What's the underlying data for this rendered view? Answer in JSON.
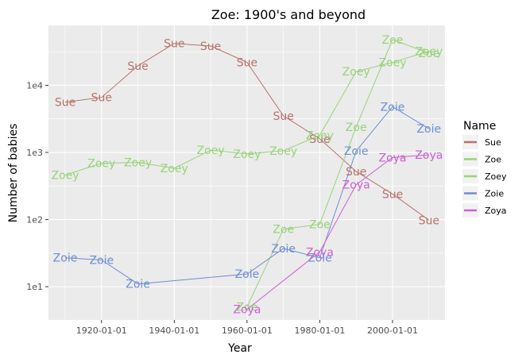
{
  "chart_data": {
    "type": "line",
    "title": "Zoe: 1900's and beyond",
    "xlabel": "Year",
    "ylabel": "Number of babies",
    "x_scale": "date",
    "y_scale": "log10",
    "xlim": [
      "1905-06-01",
      "2014-06-01"
    ],
    "ylim": [
      3.2,
      78000
    ],
    "x_ticks": [
      "1920-01-01",
      "1940-01-01",
      "1960-01-01",
      "1980-01-01",
      "2000-01-01"
    ],
    "y_ticks": [
      {
        "value": 10,
        "label": "1e1"
      },
      {
        "value": 100,
        "label": "1e2"
      },
      {
        "value": 1000,
        "label": "1e3"
      },
      {
        "value": 10000,
        "label": "1e4"
      }
    ],
    "grid": true,
    "legend": {
      "title": "Name",
      "position": "right"
    },
    "series": [
      {
        "name": "Sue",
        "color": "#b5736a",
        "x": [
          "1910-01-01",
          "1920-01-01",
          "1930-01-01",
          "1940-01-01",
          "1950-01-01",
          "1960-01-01",
          "1970-01-01",
          "1980-01-01",
          "1990-01-01",
          "2000-01-01",
          "2010-01-01"
        ],
        "y": [
          5600,
          6600,
          19500,
          42000,
          38500,
          22000,
          3500,
          1600,
          520,
          240,
          98
        ]
      },
      {
        "name": "Zoe",
        "color": "#97d378",
        "x": [
          "1960-01-01",
          "1970-01-01",
          "1980-01-01",
          "1990-01-01",
          "2000-01-01",
          "2010-01-01"
        ],
        "y": [
          5,
          72,
          85,
          2400,
          48000,
          30000
        ]
      },
      {
        "name": "Zoey",
        "color": "#97d378",
        "x": [
          "1910-01-01",
          "1920-01-01",
          "1930-01-01",
          "1940-01-01",
          "1950-01-01",
          "1960-01-01",
          "1970-01-01",
          "1980-01-01",
          "1990-01-01",
          "2000-01-01",
          "2010-01-01"
        ],
        "y": [
          460,
          690,
          710,
          580,
          1080,
          950,
          1060,
          1800,
          16000,
          22000,
          32000
        ]
      },
      {
        "name": "Zoie",
        "color": "#6d8ed1",
        "x": [
          "1910-01-01",
          "1920-01-01",
          "1930-01-01",
          "1960-01-01",
          "1970-01-01",
          "1980-01-01",
          "1990-01-01",
          "2000-01-01",
          "2010-01-01"
        ],
        "y": [
          27,
          25,
          11,
          15.5,
          37,
          27,
          1050,
          4800,
          2250
        ]
      },
      {
        "name": "Zoya",
        "color": "#cd5fd3",
        "x": [
          "1960-01-01",
          "1980-01-01",
          "1990-01-01",
          "2000-01-01",
          "2010-01-01"
        ],
        "y": [
          4.6,
          33,
          330,
          840,
          920
        ]
      }
    ]
  }
}
